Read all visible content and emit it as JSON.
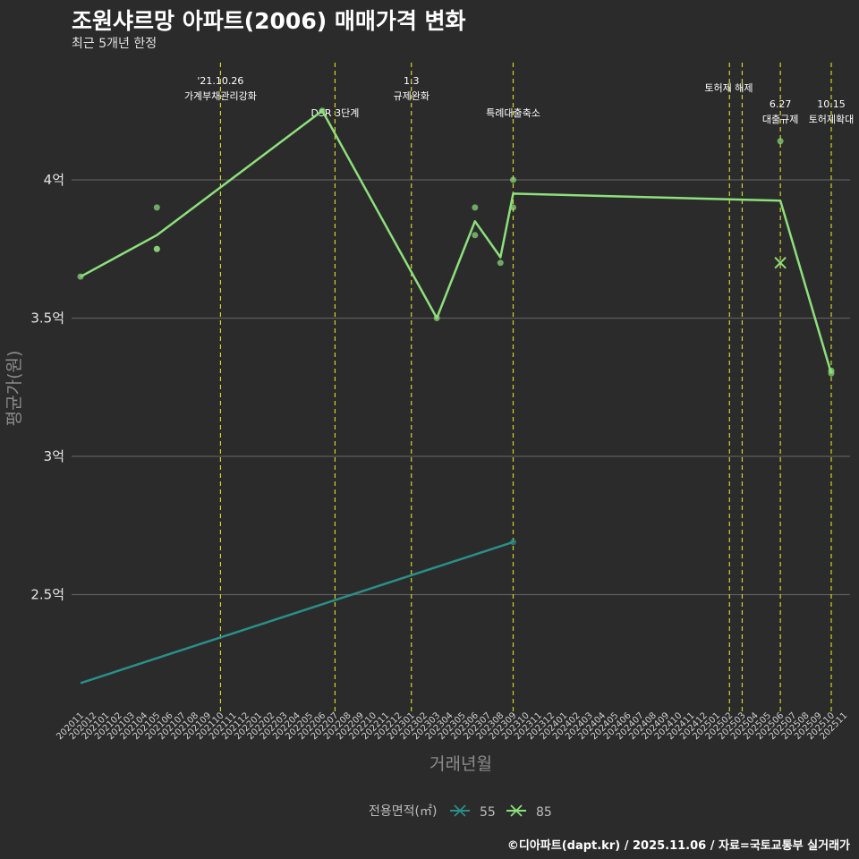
{
  "title": "조원샤르망 아파트(2006) 매매가격 변화",
  "subtitle": "최근 5개년 한정",
  "caption": "©디아파트(dapt.kr) / 2025.11.06 / 자료=국토교통부 실거래가",
  "chart_data": {
    "type": "line",
    "xlabel": "거래년월",
    "ylabel": "평균가(원)",
    "ylim": [
      2.05,
      4.5
    ],
    "yticks": [
      2.5,
      3,
      3.5,
      4
    ],
    "ytick_labels": [
      "2.5억",
      "3억",
      "3.5억",
      "4억"
    ],
    "x_months": [
      "202011",
      "202012",
      "202101",
      "202102",
      "202103",
      "202104",
      "202105",
      "202106",
      "202107",
      "202108",
      "202109",
      "202110",
      "202111",
      "202112",
      "202201",
      "202202",
      "202203",
      "202204",
      "202205",
      "202206",
      "202207",
      "202208",
      "202209",
      "202210",
      "202211",
      "202212",
      "202301",
      "202302",
      "202303",
      "202304",
      "202305",
      "202306",
      "202307",
      "202308",
      "202309",
      "202310",
      "202311",
      "202312",
      "202401",
      "202402",
      "202403",
      "202404",
      "202405",
      "202406",
      "202407",
      "202408",
      "202409",
      "202410",
      "202411",
      "202412",
      "202501",
      "202502",
      "202503",
      "202504",
      "202505",
      "202506",
      "202507",
      "202508",
      "202509",
      "202510",
      "202511"
    ],
    "legend_title": "전용면적(㎡)",
    "series": [
      {
        "name": "55",
        "color": "#2a8f8a",
        "line": [
          {
            "x": "202011",
            "y": 2.18
          },
          {
            "x": "202309",
            "y": 2.69
          }
        ],
        "points": [
          {
            "x": "202309",
            "y": 2.69
          }
        ]
      },
      {
        "name": "85",
        "color": "#8de07c",
        "line": [
          {
            "x": "202011",
            "y": 3.65
          },
          {
            "x": "202105",
            "y": 3.8
          },
          {
            "x": "202206",
            "y": 4.25
          },
          {
            "x": "202303",
            "y": 3.5
          },
          {
            "x": "202306",
            "y": 3.85
          },
          {
            "x": "202308",
            "y": 3.72
          },
          {
            "x": "202309",
            "y": 3.95
          },
          {
            "x": "202506",
            "y": 3.925
          },
          {
            "x": "202510",
            "y": 3.3
          }
        ],
        "points": [
          {
            "x": "202011",
            "y": 3.65
          },
          {
            "x": "202105",
            "y": 3.9
          },
          {
            "x": "202105",
            "y": 3.75
          },
          {
            "x": "202105",
            "y": 3.75
          },
          {
            "x": "202206",
            "y": 4.25
          },
          {
            "x": "202303",
            "y": 3.5
          },
          {
            "x": "202306",
            "y": 3.9
          },
          {
            "x": "202306",
            "y": 3.8
          },
          {
            "x": "202308",
            "y": 3.7
          },
          {
            "x": "202309",
            "y": 4.0
          },
          {
            "x": "202309",
            "y": 3.9
          },
          {
            "x": "202506",
            "y": 4.14
          },
          {
            "x": "202510",
            "y": 3.31
          },
          {
            "x": "202510",
            "y": 3.3
          }
        ],
        "crosses": [
          {
            "x": "202506",
            "y": 3.7
          }
        ]
      }
    ],
    "events": [
      {
        "x": "202110",
        "lines": [
          "'21.10.26",
          "가계부채관리강화"
        ],
        "row": 0
      },
      {
        "x": "202207",
        "lines": [
          "DSR 3단계"
        ],
        "row": 1
      },
      {
        "x": "202301",
        "lines": [
          "1.3",
          "규제완화"
        ],
        "row": 0
      },
      {
        "x": "202309",
        "lines": [
          "특례대출축소"
        ],
        "row": 1
      },
      {
        "x": "202502",
        "lines": [],
        "row": 0
      },
      {
        "x": "202503",
        "lines": [
          "토허제 해제"
        ],
        "row": 0,
        "offset": -1
      },
      {
        "x": "202506",
        "lines": [
          "6.27",
          "대출규제"
        ],
        "row": 2
      },
      {
        "x": "202510",
        "lines": [
          "10.15",
          "토허제확대"
        ],
        "row": 2
      }
    ]
  }
}
